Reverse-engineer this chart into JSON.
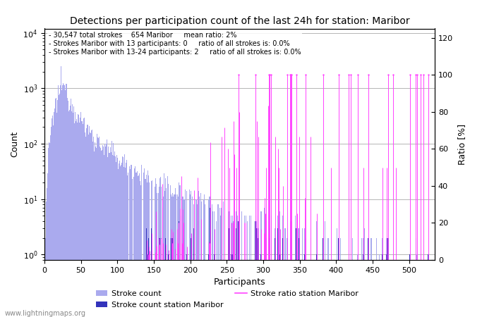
{
  "title": "Detections per participation count of the last 24h for station: Maribor",
  "xlabel": "Participants",
  "ylabel_left": "Count",
  "ylabel_right": "Ratio [%]",
  "annotation_lines": [
    "30,547 total strokes    654 Maribor     mean ratio: 2%",
    "Strokes Maribor with 13 participants: 0     ratio of all strokes is: 0.0%",
    "Strokes Maribor with 13-24 participants: 2     ratio of all strokes is: 0.0%"
  ],
  "watermark": "www.lightningmaps.org",
  "bar_color_global": "#aaaaee",
  "bar_color_station": "#3333bb",
  "line_color_ratio": "#ff44ff",
  "ylim_ratio": [
    0,
    125
  ],
  "xlim": [
    0,
    535
  ],
  "xticks": [
    0,
    50,
    100,
    150,
    200,
    250,
    300,
    350,
    400,
    450,
    500
  ],
  "ratio_yticks": [
    0,
    20,
    40,
    60,
    80,
    100,
    120
  ],
  "log_yticks": [
    1,
    10,
    100,
    1000,
    10000
  ],
  "log_ylim_min": 0.8,
  "log_ylim_max": 12000
}
